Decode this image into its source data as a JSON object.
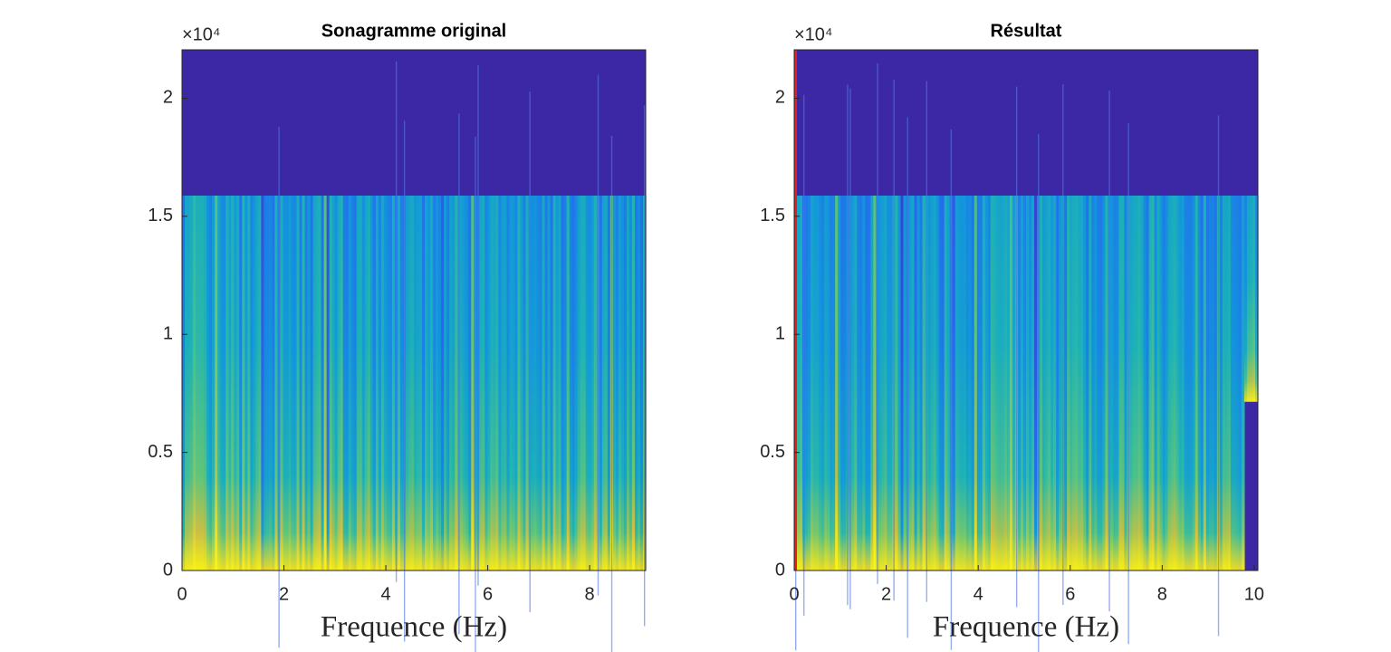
{
  "chart_data": [
    {
      "type": "spectrogram",
      "title": "Sonagramme original",
      "xlabel": "Frequence (Hz)",
      "y_exponent": "×10⁴",
      "xlim": [
        0,
        9.1
      ],
      "xticks": [
        0,
        2,
        4,
        6,
        8
      ],
      "ylim": [
        0,
        22050
      ],
      "yticks": [
        0,
        {
          "value": 5000,
          "label": "0.5"
        },
        {
          "value": 10000,
          "label": "1"
        },
        {
          "value": 15000,
          "label": "1.5"
        },
        {
          "value": 20000,
          "label": "2"
        }
      ]
    },
    {
      "type": "spectrogram",
      "title": "Résultat",
      "xlabel": "Frequence (Hz)",
      "y_exponent": "×10⁴",
      "xlim": [
        0,
        10.08
      ],
      "xticks": [
        0,
        2,
        4,
        6,
        8,
        10
      ],
      "ylim": [
        0,
        22050
      ],
      "yticks": [
        0,
        {
          "value": 5000,
          "label": "0.5"
        },
        {
          "value": 10000,
          "label": "1"
        },
        {
          "value": 15000,
          "label": "1.5"
        },
        {
          "value": 20000,
          "label": "2"
        }
      ]
    }
  ]
}
